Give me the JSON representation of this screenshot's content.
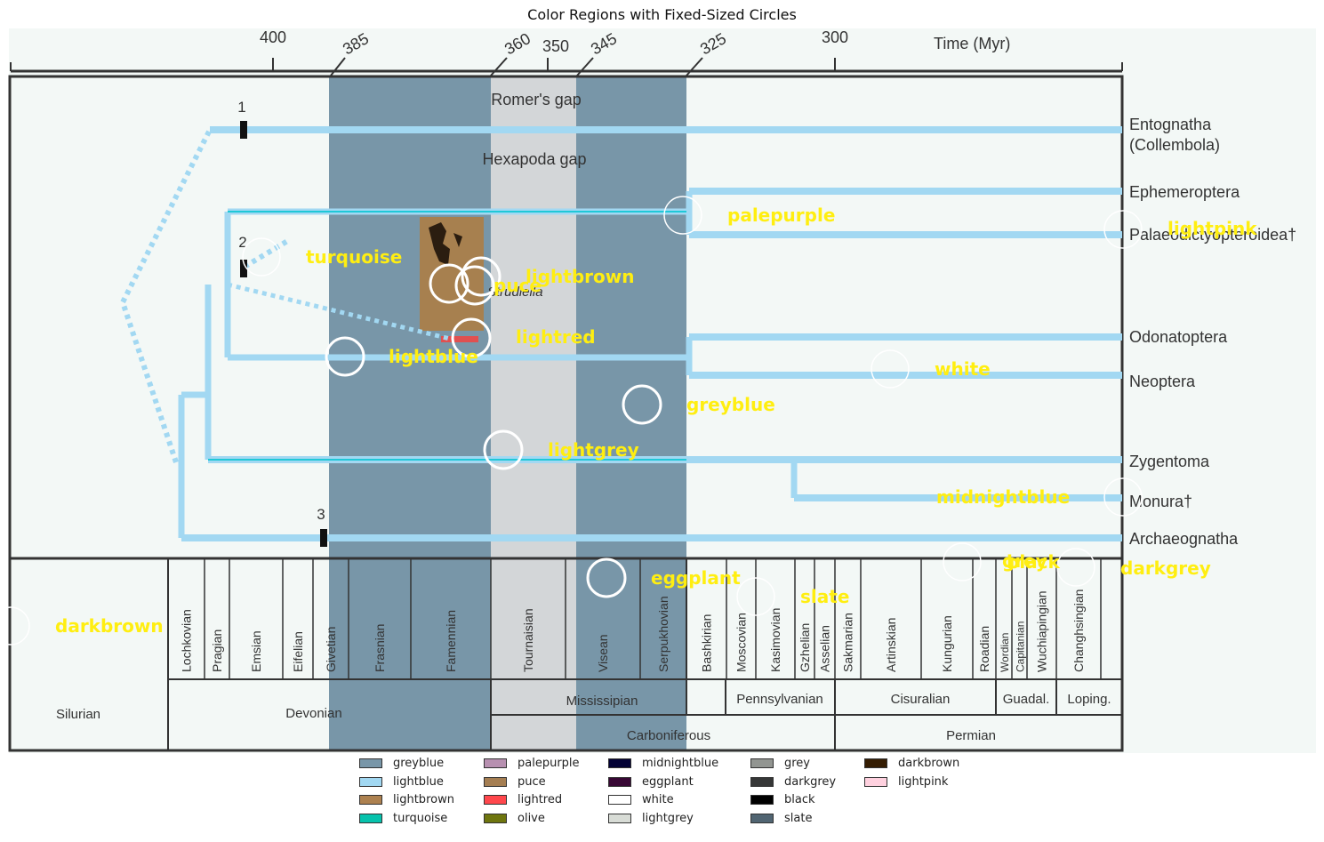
{
  "title": "Color Regions with Fixed-Sized Circles",
  "time_axis": {
    "title": "Time (Myr)",
    "ticks": [
      "400",
      "385",
      "360",
      "350",
      "345",
      "325",
      "300"
    ]
  },
  "gaps": {
    "romer": "Romer's gap",
    "hexapoda": "Hexapoda gap"
  },
  "fossil_label": "Strudiella",
  "nodes": [
    "1",
    "2",
    "3"
  ],
  "taxa": [
    [
      "Entognatha",
      "(Collembola)"
    ],
    [
      "Ephemeroptera"
    ],
    [
      "Palaeodictyopteroidea†"
    ],
    [
      "Odonatoptera"
    ],
    [
      "Neoptera"
    ],
    [
      "Zygentoma"
    ],
    [
      "Monura†"
    ],
    [
      "Archaeognatha"
    ]
  ],
  "stages": [
    "Lochkovian",
    "Pragian",
    "Emsian",
    "Eifelian",
    "Givetian",
    "Frasnian",
    "Famennian",
    "Tournaisian",
    "Visean",
    "Serpukhovian",
    "Bashkirian",
    "Moscovian",
    "Kasimovian",
    "Gzhelian",
    "Asselian",
    "Sakmarian",
    "Artinskian",
    "Kungurian",
    "Roadian",
    "Wordian",
    "Capitanian",
    "Wuchiapingian",
    "Changhsingian"
  ],
  "series": [
    "Silurian",
    "Devonian",
    "Mississipian",
    "Pennsylvanian",
    "Cisuralian",
    "Guadal.",
    "Loping."
  ],
  "periods": [
    "Carboniferous",
    "Permian"
  ],
  "annotations": [
    "turquoise",
    "lightbrown",
    "puce",
    "lightred",
    "lightblue",
    "palepurple",
    "lightpink",
    "white",
    "greyblue",
    "lightgrey",
    "midnightblue",
    "black",
    "grey",
    "darkgrey",
    "eggplant",
    "slate",
    "darkbrown"
  ],
  "legend": [
    {
      "label": "greyblue",
      "color": "#7896a8"
    },
    {
      "label": "lightblue",
      "color": "#a2d8f2"
    },
    {
      "label": "lightbrown",
      "color": "#ad8150"
    },
    {
      "label": "turquoise",
      "color": "#06c2ac"
    },
    {
      "label": "palepurple",
      "color": "#b790b0"
    },
    {
      "label": "puce",
      "color": "#a57e52"
    },
    {
      "label": "lightred",
      "color": "#ff474c"
    },
    {
      "label": "olive",
      "color": "#6e750e"
    },
    {
      "label": "midnightblue",
      "color": "#020035"
    },
    {
      "label": "eggplant",
      "color": "#380835"
    },
    {
      "label": "white",
      "color": "#ffffff"
    },
    {
      "label": "lightgrey",
      "color": "#d8dcd6"
    },
    {
      "label": "grey",
      "color": "#929591"
    },
    {
      "label": "darkgrey",
      "color": "#363737"
    },
    {
      "label": "black",
      "color": "#000000"
    },
    {
      "label": "slate",
      "color": "#516572"
    },
    {
      "label": "darkbrown",
      "color": "#341c02"
    },
    {
      "label": "lightpink",
      "color": "#ffd1df"
    }
  ]
}
